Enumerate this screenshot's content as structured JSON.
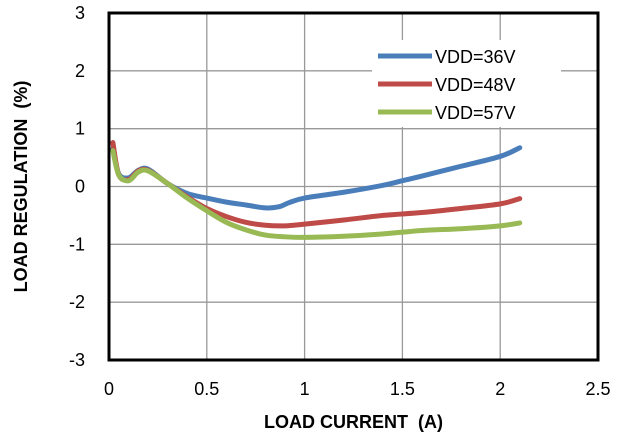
{
  "chart_data": {
    "type": "line",
    "title": "",
    "xlabel": "LOAD CURRENT  (A)",
    "ylabel": "LOAD REGULATION  (%)",
    "xlim": [
      0,
      2.5
    ],
    "ylim": [
      -3,
      3
    ],
    "x_ticks": [
      "0",
      "0.5",
      "1",
      "1.5",
      "2",
      "2.5"
    ],
    "y_ticks": [
      "3",
      "2",
      "1",
      "0",
      "-1",
      "-2",
      "-3"
    ],
    "grid": true,
    "legend_position": "top-right",
    "series": [
      {
        "name": "VDD=36V",
        "color": "#4a7ebb",
        "points": [
          [
            0.02,
            0.65
          ],
          [
            0.05,
            0.22
          ],
          [
            0.1,
            0.15
          ],
          [
            0.15,
            0.28
          ],
          [
            0.2,
            0.3
          ],
          [
            0.3,
            0.05
          ],
          [
            0.4,
            -0.12
          ],
          [
            0.5,
            -0.2
          ],
          [
            0.6,
            -0.27
          ],
          [
            0.7,
            -0.32
          ],
          [
            0.8,
            -0.37
          ],
          [
            0.87,
            -0.35
          ],
          [
            0.92,
            -0.28
          ],
          [
            1.0,
            -0.2
          ],
          [
            1.2,
            -0.1
          ],
          [
            1.4,
            0.02
          ],
          [
            1.5,
            0.1
          ],
          [
            1.6,
            0.18
          ],
          [
            1.8,
            0.35
          ],
          [
            2.0,
            0.52
          ],
          [
            2.1,
            0.67
          ]
        ]
      },
      {
        "name": "VDD=48V",
        "color": "#be4b48",
        "points": [
          [
            0.02,
            0.76
          ],
          [
            0.05,
            0.2
          ],
          [
            0.1,
            0.12
          ],
          [
            0.15,
            0.27
          ],
          [
            0.2,
            0.28
          ],
          [
            0.3,
            0.05
          ],
          [
            0.4,
            -0.18
          ],
          [
            0.5,
            -0.38
          ],
          [
            0.6,
            -0.52
          ],
          [
            0.7,
            -0.62
          ],
          [
            0.8,
            -0.67
          ],
          [
            0.9,
            -0.68
          ],
          [
            1.0,
            -0.65
          ],
          [
            1.2,
            -0.58
          ],
          [
            1.4,
            -0.5
          ],
          [
            1.6,
            -0.45
          ],
          [
            1.8,
            -0.38
          ],
          [
            2.0,
            -0.3
          ],
          [
            2.1,
            -0.21
          ]
        ]
      },
      {
        "name": "VDD=57V",
        "color": "#98b954",
        "points": [
          [
            0.02,
            0.62
          ],
          [
            0.05,
            0.2
          ],
          [
            0.1,
            0.1
          ],
          [
            0.15,
            0.25
          ],
          [
            0.2,
            0.27
          ],
          [
            0.3,
            0.05
          ],
          [
            0.4,
            -0.2
          ],
          [
            0.5,
            -0.42
          ],
          [
            0.6,
            -0.62
          ],
          [
            0.7,
            -0.75
          ],
          [
            0.8,
            -0.84
          ],
          [
            0.9,
            -0.87
          ],
          [
            1.0,
            -0.88
          ],
          [
            1.2,
            -0.86
          ],
          [
            1.4,
            -0.82
          ],
          [
            1.6,
            -0.76
          ],
          [
            1.8,
            -0.73
          ],
          [
            2.0,
            -0.68
          ],
          [
            2.1,
            -0.63
          ]
        ]
      }
    ]
  }
}
